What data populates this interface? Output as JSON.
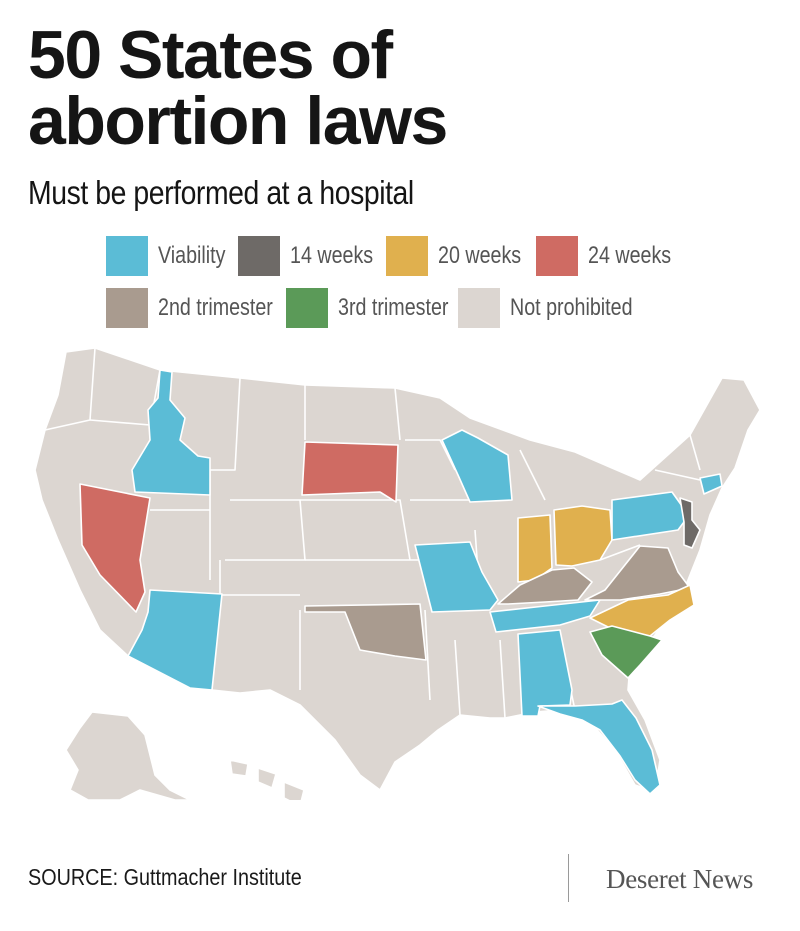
{
  "header": {
    "title_line1": "50 States of",
    "title_line2": "abortion laws",
    "subtitle": "Must be performed at a hospital"
  },
  "legend": [
    {
      "label": "Viability",
      "color": "#5bbcd6"
    },
    {
      "label": "14 weeks",
      "color": "#6e6a67"
    },
    {
      "label": "20 weeks",
      "color": "#e0b04e"
    },
    {
      "label": "24 weeks",
      "color": "#cf6b63"
    },
    {
      "label": "2nd trimester",
      "color": "#a99b8f"
    },
    {
      "label": "3rd trimester",
      "color": "#5b9a58"
    },
    {
      "label": "Not prohibited",
      "color": "#dcd6d1"
    }
  ],
  "map": {
    "states": [
      {
        "name": "Idaho",
        "category": "Viability"
      },
      {
        "name": "Arizona",
        "category": "Viability"
      },
      {
        "name": "Missouri",
        "category": "Viability"
      },
      {
        "name": "Wisconsin",
        "category": "Viability"
      },
      {
        "name": "Tennessee",
        "category": "Viability"
      },
      {
        "name": "Alabama",
        "category": "Viability"
      },
      {
        "name": "Florida",
        "category": "Viability"
      },
      {
        "name": "Pennsylvania",
        "category": "Viability"
      },
      {
        "name": "Connecticut",
        "category": "Viability"
      },
      {
        "name": "New Jersey",
        "category": "14 weeks"
      },
      {
        "name": "Indiana",
        "category": "20 weeks"
      },
      {
        "name": "Ohio",
        "category": "20 weeks"
      },
      {
        "name": "North Carolina",
        "category": "20 weeks"
      },
      {
        "name": "Nevada",
        "category": "24 weeks"
      },
      {
        "name": "South Dakota",
        "category": "24 weeks"
      },
      {
        "name": "Oklahoma",
        "category": "2nd trimester"
      },
      {
        "name": "Kentucky",
        "category": "2nd trimester"
      },
      {
        "name": "Virginia",
        "category": "2nd trimester"
      },
      {
        "name": "South Carolina",
        "category": "3rd trimester"
      }
    ]
  },
  "footer": {
    "source": "SOURCE: Guttmacher Institute",
    "brand": "Deseret News"
  }
}
